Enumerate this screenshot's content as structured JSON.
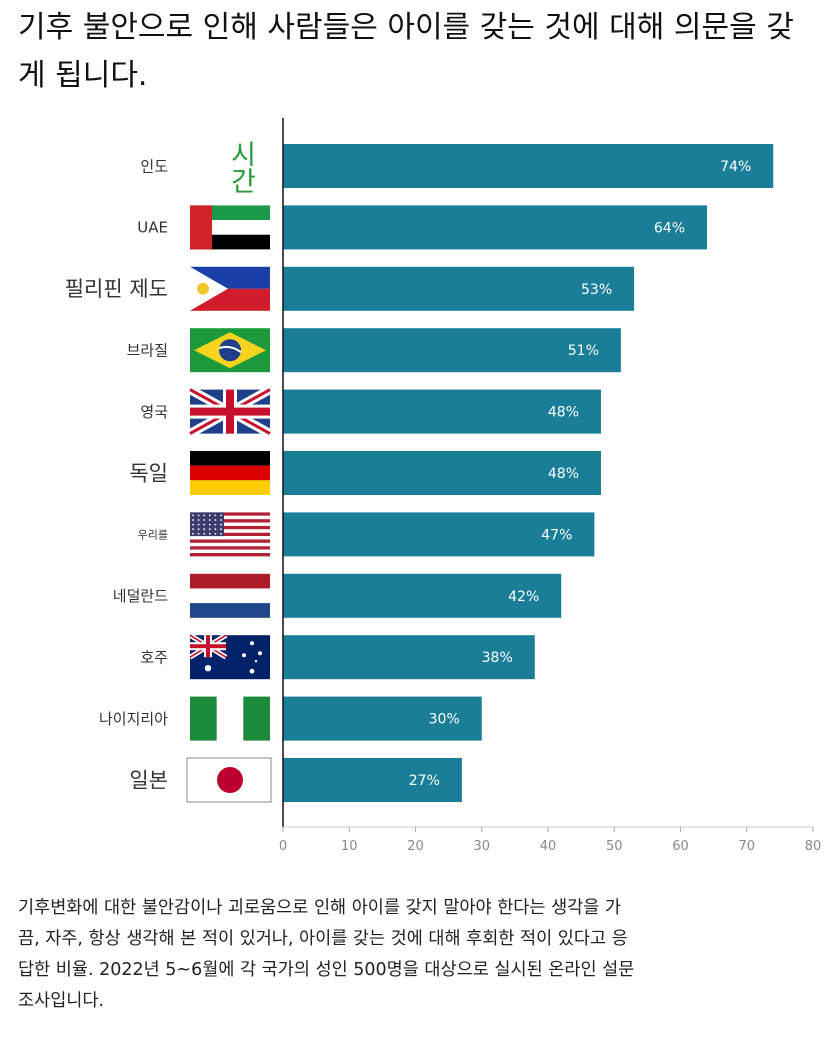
{
  "title": "기후 불안으로 인해 사람들은 아이를 갖는 것에 대해 의문을 갖게 됩니다.",
  "watermark": "시간",
  "footnote": "기후변화에 대한 불안감이나 괴로움으로 인해 아이를 갖지 말아야 한다는 생각을 가끔, 자주, 항상 생각해 본 적이 있거나, 아이를 갖는 것에 대해 후회한 적이 있다고 응답한 비율. 2022년 5~6월에 각 국가의 성인 500명을 대상으로 실시된 온라인 설문조사입니다.",
  "colors": {
    "bar": "#1a7e98",
    "bar_label": "#ffffff",
    "axis": "#111111",
    "tick": "#888888"
  },
  "chart_data": {
    "type": "bar",
    "orientation": "horizontal",
    "title": "기후 불안으로 인해 사람들은 아이를 갖는 것에 대해 의문을 갖게 됩니다.",
    "xlim": [
      0,
      80
    ],
    "xticks": [
      0,
      10,
      20,
      30,
      40,
      50,
      60,
      70,
      80
    ],
    "grid": false,
    "categories": [
      {
        "label": "인도",
        "value": 74,
        "data_label": "74%",
        "flag": "india-flag"
      },
      {
        "label": "UAE",
        "value": 64,
        "data_label": "64%",
        "flag": "uae-flag"
      },
      {
        "label": "필리핀 제도",
        "value": 53,
        "data_label": "53%",
        "flag": "philippines-flag"
      },
      {
        "label": "브라질",
        "value": 51,
        "data_label": "51%",
        "flag": "brazil-flag"
      },
      {
        "label": "영국",
        "value": 48,
        "data_label": "48%",
        "flag": "uk-flag"
      },
      {
        "label": "독일",
        "value": 48,
        "data_label": "48%",
        "flag": "germany-flag"
      },
      {
        "label": "우리를",
        "value": 47,
        "data_label": "47%",
        "flag": "usa-flag"
      },
      {
        "label": "네덜란드",
        "value": 42,
        "data_label": "42%",
        "flag": "netherlands-flag"
      },
      {
        "label": "호주",
        "value": 38,
        "data_label": "38%",
        "flag": "australia-flag"
      },
      {
        "label": "나이지리아",
        "value": 30,
        "data_label": "30%",
        "flag": "nigeria-flag"
      },
      {
        "label": "일본",
        "value": 27,
        "data_label": "27%",
        "flag": "japan-flag"
      }
    ]
  }
}
